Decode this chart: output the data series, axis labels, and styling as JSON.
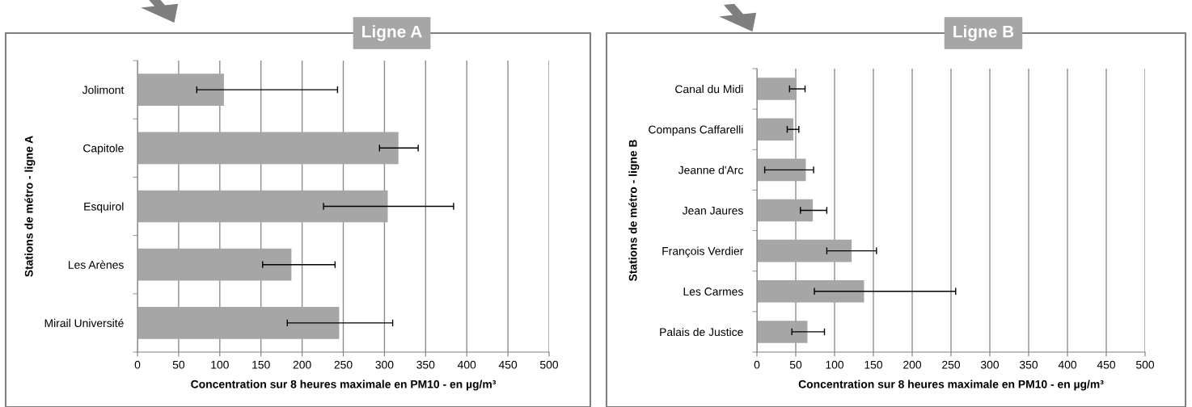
{
  "chart_data": [
    {
      "type": "bar",
      "orientation": "horizontal",
      "title": "Ligne A",
      "xlabel": "Concentration sur 8 heures maximale en PM10 - en µg/m³",
      "ylabel": "Stations de métro - ligne A",
      "categories": [
        "Jolimont",
        "Capitole",
        "Esquirol",
        "Les Arènes",
        "Mirail Université"
      ],
      "series": [
        {
          "color": "#a6a6a6",
          "values": [
            105,
            317,
            304,
            187,
            245
          ],
          "errors": [
            [
              72,
              243
            ],
            [
              294,
              341
            ],
            [
              226,
              384
            ],
            [
              152,
              240
            ],
            [
              182,
              310
            ]
          ]
        }
      ],
      "xlim": [
        0,
        500
      ],
      "xticks": [
        0,
        50,
        100,
        150,
        200,
        250,
        300,
        350,
        400,
        450,
        500
      ],
      "grid": "x",
      "legend": false
    },
    {
      "type": "bar",
      "orientation": "horizontal",
      "title": "Ligne B",
      "xlabel": "Concentration sur 8 heures maximale en PM10 - en µg/m³",
      "ylabel": "Stations de métro - ligne B",
      "categories": [
        "Canal du Midi",
        "Compans Caffarelli",
        "Jeanne d'Arc",
        "Jean Jaures",
        "François Verdier",
        "Les Carmes",
        "Palais de Justice"
      ],
      "series": [
        {
          "color": "#a6a6a6",
          "values": [
            51,
            47,
            63,
            72,
            122,
            138,
            65
          ],
          "errors": [
            [
              42,
              62
            ],
            [
              39,
              54
            ],
            [
              10,
              73
            ],
            [
              56,
              90
            ],
            [
              90,
              154
            ],
            [
              74,
              256
            ],
            [
              45,
              87
            ]
          ]
        }
      ],
      "xlim": [
        0,
        500
      ],
      "xticks": [
        0,
        50,
        100,
        150,
        200,
        250,
        300,
        350,
        400,
        450,
        500
      ],
      "grid": "x",
      "legend": false
    }
  ]
}
